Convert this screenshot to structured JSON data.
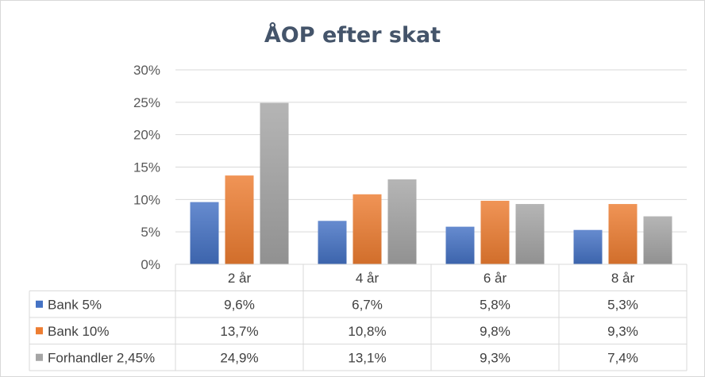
{
  "chart_data": {
    "type": "bar",
    "title": "ÅOP efter skat",
    "categories": [
      "2 år",
      "4 år",
      "6 år",
      "8 år"
    ],
    "series": [
      {
        "name": "Bank 5%",
        "values": [
          9.6,
          6.7,
          5.8,
          5.3
        ],
        "labels": [
          "9,6%",
          "6,7%",
          "5,8%",
          "5,3%"
        ],
        "color": "#4472c4"
      },
      {
        "name": "Bank 10%",
        "values": [
          13.7,
          10.8,
          9.8,
          9.3
        ],
        "labels": [
          "13,7%",
          "10,8%",
          "9,8%",
          "9,3%"
        ],
        "color": "#ed7d31"
      },
      {
        "name": "Forhandler 2,45%",
        "values": [
          24.9,
          13.1,
          9.3,
          7.4
        ],
        "labels": [
          "24,9%",
          "13,1%",
          "9,3%",
          "7,4%"
        ],
        "color": "#a5a5a5"
      }
    ],
    "ylim": [
      0,
      30
    ],
    "yticks": [
      0,
      5,
      10,
      15,
      20,
      25,
      30
    ],
    "ytick_labels": [
      "0%",
      "5%",
      "10%",
      "15%",
      "20%",
      "25%",
      "30%"
    ],
    "grid": true,
    "legend": "data-table"
  }
}
